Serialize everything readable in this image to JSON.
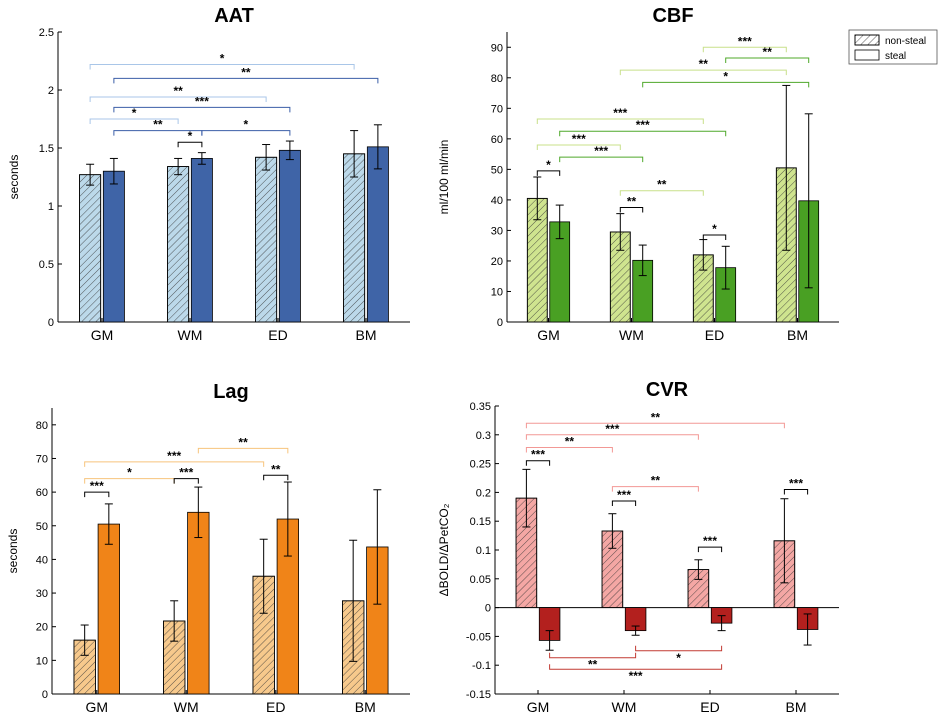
{
  "legend": {
    "items": [
      {
        "label": "non-steal",
        "hatched": true
      },
      {
        "label": "steal",
        "hatched": false
      }
    ]
  },
  "chart_data": [
    {
      "id": "aat",
      "type": "bar",
      "title": "AAT",
      "ylabel": "seconds",
      "categories": [
        "GM",
        "WM",
        "ED",
        "BM"
      ],
      "ylim": [
        0,
        2.5
      ],
      "yticks": [
        0,
        0.5,
        1,
        1.5,
        2,
        2.5
      ],
      "ytick_labels": [
        "0",
        "0.5",
        "1",
        "1.5",
        "2",
        "2.5"
      ],
      "colors": {
        "light": "#bcd9ea",
        "dark": "#3f64a7",
        "bracket_light": "#a9c6e8",
        "bracket_dark": "#3b5ea8"
      },
      "series": [
        {
          "name": "non-steal",
          "values": [
            1.27,
            1.34,
            1.42,
            1.45
          ],
          "err_low": [
            0.09,
            0.07,
            0.11,
            0.2
          ],
          "err_high": [
            0.09,
            0.07,
            0.11,
            0.2
          ]
        },
        {
          "name": "steal",
          "values": [
            1.3,
            1.41,
            1.48,
            1.51
          ],
          "err_low": [
            0.11,
            0.05,
            0.08,
            0.19
          ],
          "err_high": [
            0.11,
            0.05,
            0.08,
            0.19
          ]
        }
      ],
      "brackets": [
        {
          "from": [
            0,
            0
          ],
          "to": [
            3,
            0
          ],
          "y": 2.22,
          "label": "*",
          "tone": "bracket_light"
        },
        {
          "from": [
            0,
            1
          ],
          "to": [
            3,
            1
          ],
          "y": 2.1,
          "label": "**",
          "tone": "bracket_dark"
        },
        {
          "from": [
            0,
            0
          ],
          "to": [
            2,
            0
          ],
          "y": 1.94,
          "label": "**",
          "tone": "bracket_light"
        },
        {
          "from": [
            0,
            1
          ],
          "to": [
            2,
            1
          ],
          "y": 1.85,
          "label": "***",
          "tone": "bracket_dark"
        },
        {
          "from": [
            0,
            0
          ],
          "to": [
            1,
            0
          ],
          "y": 1.75,
          "label": "*",
          "tone": "bracket_light"
        },
        {
          "from": [
            0,
            1
          ],
          "to": [
            1,
            1
          ],
          "y": 1.65,
          "label": "**",
          "tone": "bracket_dark"
        },
        {
          "from": [
            1,
            0
          ],
          "to": [
            1,
            1
          ],
          "y": 1.55,
          "label": "*",
          "tone": "black"
        },
        {
          "from": [
            1,
            1
          ],
          "to": [
            2,
            1
          ],
          "y": 1.65,
          "label": "*",
          "tone": "bracket_dark"
        }
      ]
    },
    {
      "id": "cbf",
      "type": "bar",
      "title": "CBF",
      "ylabel": "ml/100 ml/min",
      "categories": [
        "GM",
        "WM",
        "ED",
        "BM"
      ],
      "ylim": [
        0,
        95
      ],
      "yticks": [
        0,
        10,
        20,
        30,
        40,
        50,
        60,
        70,
        80,
        90
      ],
      "ytick_labels": [
        "0",
        "10",
        "20",
        "30",
        "40",
        "50",
        "60",
        "70",
        "80",
        "90"
      ],
      "colors": {
        "light": "#cfe48f",
        "dark": "#49a023",
        "bracket_light": "#c8e08a",
        "bracket_dark": "#4fa82a"
      },
      "series": [
        {
          "name": "non-steal",
          "values": [
            40.5,
            29.5,
            22,
            50.5
          ],
          "err_low": [
            7,
            6,
            5,
            27
          ],
          "err_high": [
            7,
            6,
            5,
            27
          ]
        },
        {
          "name": "steal",
          "values": [
            32.8,
            20.2,
            17.8,
            39.7
          ],
          "err_low": [
            5.5,
            5,
            7,
            28.5
          ],
          "err_high": [
            5.5,
            5,
            7,
            28.5
          ]
        }
      ],
      "brackets": [
        {
          "from": [
            2,
            0
          ],
          "to": [
            3,
            0
          ],
          "y": 90,
          "label": "***",
          "tone": "bracket_light"
        },
        {
          "from": [
            2,
            1
          ],
          "to": [
            3,
            1
          ],
          "y": 86.5,
          "label": "**",
          "tone": "bracket_dark"
        },
        {
          "from": [
            1,
            0
          ],
          "to": [
            3,
            0
          ],
          "y": 82.5,
          "label": "**",
          "tone": "bracket_light"
        },
        {
          "from": [
            1,
            1
          ],
          "to": [
            3,
            1
          ],
          "y": 78.5,
          "label": "*",
          "tone": "bracket_dark"
        },
        {
          "from": [
            0,
            0
          ],
          "to": [
            2,
            0
          ],
          "y": 66.5,
          "label": "***",
          "tone": "bracket_light"
        },
        {
          "from": [
            0,
            1
          ],
          "to": [
            2,
            1
          ],
          "y": 62.5,
          "label": "***",
          "tone": "bracket_dark"
        },
        {
          "from": [
            0,
            0
          ],
          "to": [
            1,
            0
          ],
          "y": 58,
          "label": "***",
          "tone": "bracket_light"
        },
        {
          "from": [
            0,
            1
          ],
          "to": [
            1,
            1
          ],
          "y": 54,
          "label": "***",
          "tone": "bracket_dark"
        },
        {
          "from": [
            0,
            0
          ],
          "to": [
            0,
            1
          ],
          "y": 49.5,
          "label": "*",
          "tone": "black"
        },
        {
          "from": [
            1,
            0
          ],
          "to": [
            2,
            0
          ],
          "y": 43,
          "label": "**",
          "tone": "bracket_light"
        },
        {
          "from": [
            1,
            0
          ],
          "to": [
            1,
            1
          ],
          "y": 37.5,
          "label": "**",
          "tone": "black"
        },
        {
          "from": [
            2,
            0
          ],
          "to": [
            2,
            1
          ],
          "y": 28.5,
          "label": "*",
          "tone": "black"
        }
      ]
    },
    {
      "id": "lag",
      "type": "bar",
      "title": "Lag",
      "ylabel": "seconds",
      "categories": [
        "GM",
        "WM",
        "ED",
        "BM"
      ],
      "ylim": [
        0,
        85
      ],
      "yticks": [
        0,
        10,
        20,
        30,
        40,
        50,
        60,
        70,
        80
      ],
      "ytick_labels": [
        "0",
        "10",
        "20",
        "30",
        "40",
        "50",
        "60",
        "70",
        "80"
      ],
      "colors": {
        "light": "#f7c98c",
        "dark": "#f08418",
        "bracket_light": "#f7c47c",
        "bracket_dark": "#f0901e"
      },
      "series": [
        {
          "name": "non-steal",
          "values": [
            16,
            21.7,
            35,
            27.7
          ],
          "err_low": [
            4.5,
            6,
            11,
            18
          ],
          "err_high": [
            4.5,
            6,
            11,
            18
          ]
        },
        {
          "name": "steal",
          "values": [
            50.5,
            54,
            52,
            43.7
          ],
          "err_low": [
            6,
            7.5,
            11,
            17
          ],
          "err_high": [
            6,
            7.5,
            11,
            17
          ]
        }
      ],
      "brackets": [
        {
          "from": [
            1,
            1
          ],
          "to": [
            2,
            1
          ],
          "y": 73,
          "label": "**",
          "tone": "bracket_light"
        },
        {
          "from": [
            0,
            0
          ],
          "to": [
            2,
            0
          ],
          "y": 69,
          "label": "***",
          "tone": "bracket_light"
        },
        {
          "from": [
            0,
            0
          ],
          "to": [
            1,
            0
          ],
          "y": 64,
          "label": "*",
          "tone": "bracket_light"
        },
        {
          "from": [
            0,
            0
          ],
          "to": [
            0,
            1
          ],
          "y": 60,
          "label": "***",
          "tone": "black"
        },
        {
          "from": [
            1,
            0
          ],
          "to": [
            1,
            1
          ],
          "y": 64,
          "label": "***",
          "tone": "black"
        },
        {
          "from": [
            2,
            0
          ],
          "to": [
            2,
            1
          ],
          "y": 65,
          "label": "**",
          "tone": "black"
        }
      ]
    },
    {
      "id": "cvr",
      "type": "bar",
      "title": "CVR",
      "ylabel": "ΔBOLD/ΔPetCO₂",
      "categories": [
        "GM",
        "WM",
        "ED",
        "BM"
      ],
      "ylim": [
        -0.15,
        0.35
      ],
      "yticks": [
        -0.15,
        -0.1,
        -0.05,
        0,
        0.05,
        0.1,
        0.15,
        0.2,
        0.25,
        0.3,
        0.35
      ],
      "ytick_labels": [
        "-0.15",
        "-0.1",
        "-0.05",
        "0",
        "0.05",
        "0.1",
        "0.15",
        "0.2",
        "0.25",
        "0.3",
        "0.35"
      ],
      "colors": {
        "light": "#f4a7a4",
        "dark": "#b3201e",
        "bracket_light": "#f29895",
        "bracket_dark": "#c23a32"
      },
      "series": [
        {
          "name": "non-steal",
          "values": [
            0.19,
            0.133,
            0.066,
            0.116
          ],
          "err_low": [
            0.05,
            0.03,
            0.017,
            0.073
          ],
          "err_high": [
            0.05,
            0.03,
            0.017,
            0.073
          ]
        },
        {
          "name": "steal",
          "values": [
            -0.057,
            -0.04,
            -0.027,
            -0.038
          ],
          "err_low": [
            0.017,
            0.008,
            0.013,
            0.027
          ],
          "err_high": [
            0.017,
            0.008,
            0.013,
            0.027
          ]
        }
      ],
      "brackets": [
        {
          "from": [
            0,
            0
          ],
          "to": [
            3,
            0
          ],
          "y": 0.32,
          "label": "**",
          "tone": "bracket_light"
        },
        {
          "from": [
            0,
            0
          ],
          "to": [
            2,
            0
          ],
          "y": 0.3,
          "label": "***",
          "tone": "bracket_light"
        },
        {
          "from": [
            0,
            0
          ],
          "to": [
            1,
            0
          ],
          "y": 0.278,
          "label": "**",
          "tone": "bracket_light"
        },
        {
          "from": [
            0,
            0
          ],
          "to": [
            0,
            1
          ],
          "y": 0.255,
          "label": "***",
          "tone": "black"
        },
        {
          "from": [
            1,
            0
          ],
          "to": [
            2,
            0
          ],
          "y": 0.21,
          "label": "**",
          "tone": "bracket_light"
        },
        {
          "from": [
            1,
            0
          ],
          "to": [
            1,
            1
          ],
          "y": 0.185,
          "label": "***",
          "tone": "black"
        },
        {
          "from": [
            2,
            0
          ],
          "to": [
            2,
            1
          ],
          "y": 0.105,
          "label": "***",
          "tone": "black"
        },
        {
          "from": [
            3,
            0
          ],
          "to": [
            3,
            1
          ],
          "y": 0.205,
          "label": "***",
          "tone": "black"
        },
        {
          "from": [
            1,
            1
          ],
          "to": [
            2,
            1
          ],
          "y": -0.075,
          "label": "*",
          "tone": "bracket_dark",
          "below": true
        },
        {
          "from": [
            0,
            1
          ],
          "to": [
            1,
            1
          ],
          "y": -0.087,
          "label": "**",
          "tone": "bracket_dark",
          "below": true
        },
        {
          "from": [
            0,
            1
          ],
          "to": [
            2,
            1
          ],
          "y": -0.107,
          "label": "***",
          "tone": "bracket_dark",
          "below": true
        }
      ]
    }
  ]
}
